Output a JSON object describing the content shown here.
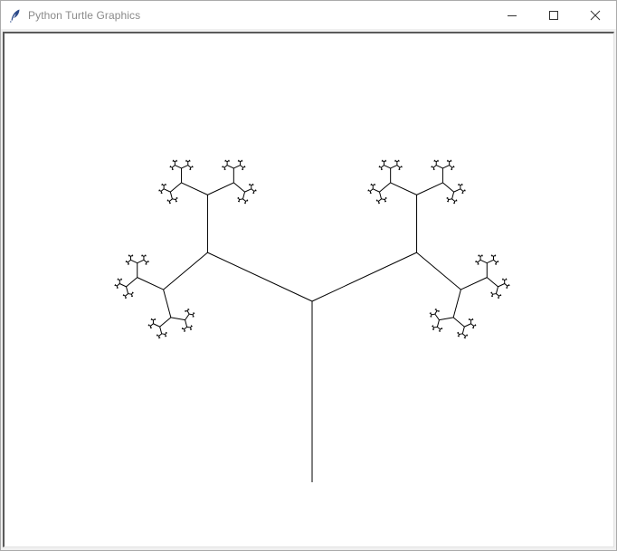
{
  "window": {
    "title": "Python Turtle Graphics",
    "app_icon": "feather-quill-icon",
    "controls": [
      {
        "name": "minimize-icon"
      },
      {
        "name": "maximize-icon"
      },
      {
        "name": "close-icon"
      }
    ]
  },
  "canvas": {
    "background": "#ffffff",
    "pen_color": "#000000",
    "drawing": "fractal-tree"
  }
}
